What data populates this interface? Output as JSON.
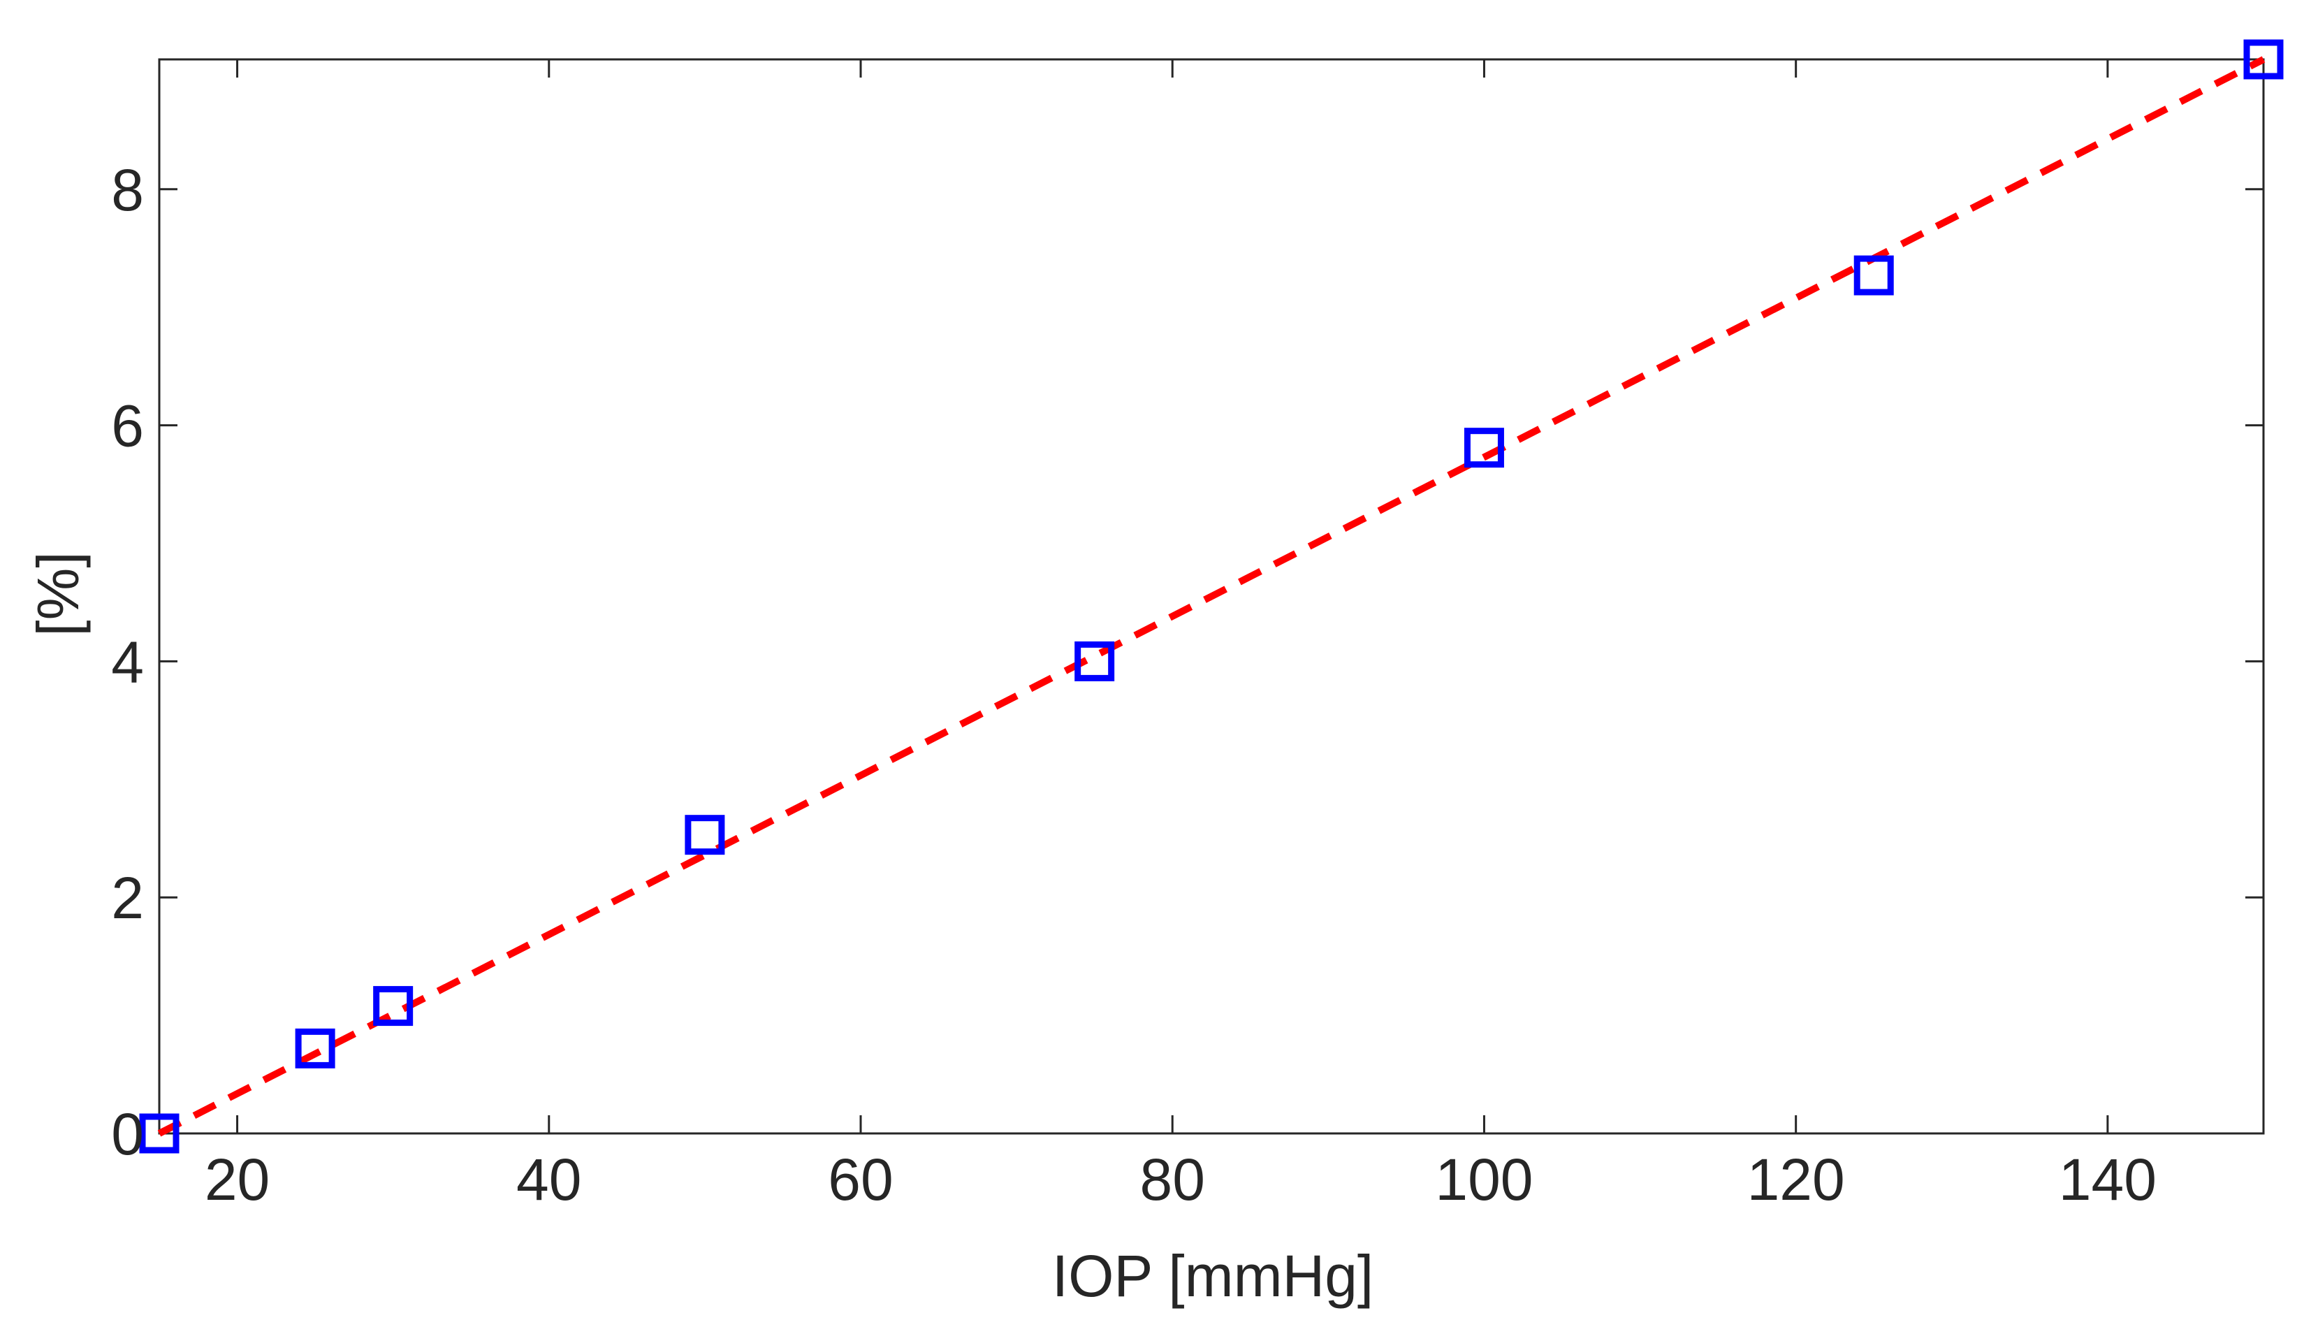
{
  "chart_data": {
    "type": "line",
    "title": "",
    "xlabel": "IOP [mmHg]",
    "ylabel": "[%]",
    "xlim": [
      15,
      150
    ],
    "ylim": [
      0,
      9.1
    ],
    "xticks": [
      20,
      40,
      60,
      80,
      100,
      120,
      140
    ],
    "yticks": [
      0,
      2,
      4,
      6,
      8
    ],
    "grid": false,
    "legend": "none",
    "series": [
      {
        "style": "markers",
        "marker": "square",
        "color": "#0000ff",
        "x": [
          15,
          25,
          30,
          50,
          75,
          100,
          125,
          150
        ],
        "y": [
          0,
          0.72,
          1.08,
          2.53,
          4.0,
          5.81,
          7.27,
          9.1
        ]
      },
      {
        "style": "dashed-line",
        "color": "#ff0000",
        "x": [
          15,
          150
        ],
        "y": [
          0,
          9.1
        ]
      }
    ]
  }
}
